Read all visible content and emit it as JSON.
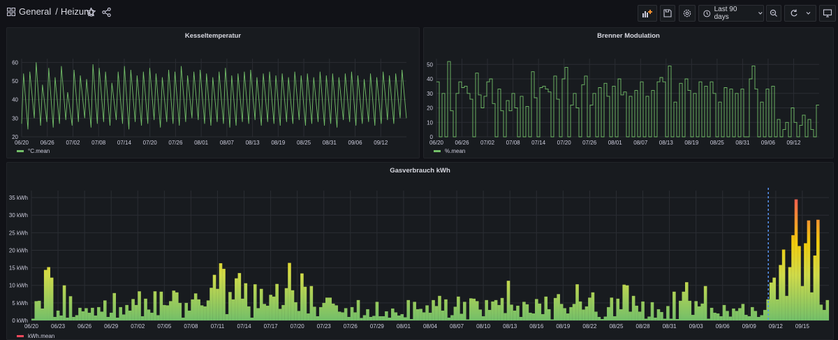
{
  "header": {
    "folder": "General",
    "dashboard": "Heizung",
    "time_range": "Last 90 days"
  },
  "panels": {
    "kessel": {
      "title": "Kesseltemperatur",
      "legend": "°C.mean",
      "color": "#73bf69"
    },
    "brenner": {
      "title": "Brenner Modulation",
      "legend": "%.mean",
      "color": "#73bf69"
    },
    "gas": {
      "title": "Gasverbrauch kWh",
      "legend": "kWh.mean",
      "legend_color": "#f2495c"
    }
  },
  "chart_data": [
    {
      "type": "line",
      "title": "Kesseltemperatur",
      "series": [
        {
          "name": "°C.mean",
          "color": "#73bf69",
          "x_start": "06/20",
          "x_end": "09/16",
          "cycle_min": [
            27,
            24,
            30,
            26,
            28,
            25,
            27,
            29,
            26,
            28,
            30,
            25,
            27,
            28,
            26,
            29,
            27,
            24,
            28,
            26,
            27,
            29,
            25,
            28,
            27,
            26,
            28,
            30,
            29,
            27,
            26,
            28,
            27,
            25,
            26,
            28,
            27,
            29,
            26,
            28,
            27,
            26,
            28,
            27,
            29,
            26,
            27,
            28,
            26,
            27,
            25,
            29,
            28,
            26,
            27,
            28,
            26,
            27,
            29,
            27,
            30
          ],
          "cycle_max": [
            54,
            55,
            60,
            48,
            57,
            52,
            58,
            44,
            56,
            53,
            51,
            59,
            57,
            55,
            49,
            55,
            58,
            56,
            53,
            55,
            57,
            54,
            52,
            56,
            55,
            58,
            53,
            55,
            56,
            54,
            52,
            55,
            57,
            53,
            54,
            55,
            56,
            52,
            54,
            55,
            53,
            54,
            52,
            55,
            53,
            54,
            52,
            55,
            53,
            54,
            52,
            54,
            55,
            53,
            51,
            54,
            52,
            55,
            53,
            54,
            56
          ]
        }
      ],
      "x_ticks": [
        "06/20",
        "06/26",
        "07/02",
        "07/08",
        "07/14",
        "07/20",
        "07/26",
        "08/01",
        "08/07",
        "08/13",
        "08/19",
        "08/25",
        "08/31",
        "09/06",
        "09/12"
      ],
      "y_ticks": [
        20,
        30,
        40,
        50,
        60
      ],
      "ylim": [
        20,
        62
      ]
    },
    {
      "type": "line",
      "title": "Brenner Modulation",
      "series": [
        {
          "name": "%.mean",
          "color": "#73bf69",
          "steps": [
            38,
            0,
            30,
            0,
            52,
            18,
            0,
            30,
            38,
            34,
            35,
            30,
            26,
            0,
            44,
            29,
            20,
            28,
            38,
            40,
            23,
            0,
            33,
            18,
            0,
            25,
            18,
            30,
            20,
            0,
            28,
            0,
            21,
            0,
            45,
            27,
            0,
            34,
            35,
            33,
            31,
            0,
            42,
            26,
            0,
            40,
            48,
            0,
            22,
            30,
            20,
            0,
            36,
            42,
            0,
            22,
            30,
            0,
            34,
            0,
            37,
            28,
            0,
            35,
            0,
            40,
            29,
            31,
            0,
            28,
            0,
            32,
            0,
            38,
            0,
            28,
            0,
            32,
            0,
            38,
            41,
            38,
            0,
            49,
            0,
            24,
            0,
            37,
            0,
            40,
            32,
            0,
            30,
            0,
            38,
            0,
            35,
            0,
            38,
            30,
            0,
            24,
            0,
            34,
            0,
            33,
            0,
            30,
            0,
            33,
            0,
            0,
            40,
            49,
            33,
            0,
            24,
            0,
            33,
            0,
            35,
            0,
            12,
            0,
            5,
            10,
            0,
            20,
            10,
            0,
            8,
            15,
            0,
            12,
            5,
            0,
            22
          ]
        }
      ],
      "x_ticks": [
        "06/20",
        "06/26",
        "07/02",
        "07/08",
        "07/14",
        "07/20",
        "07/26",
        "08/01",
        "08/07",
        "08/13",
        "08/19",
        "08/25",
        "08/31",
        "09/06",
        "09/12"
      ],
      "y_ticks": [
        0,
        10,
        20,
        30,
        40,
        50
      ],
      "ylim": [
        0,
        54
      ]
    },
    {
      "type": "bar",
      "title": "Gasverbrauch kWh",
      "series": [
        {
          "name": "kWh.mean",
          "values": [
            0.5,
            5.5,
            5.6,
            3.4,
            14.4,
            15.2,
            12.2,
            1.0,
            2.8,
            1.4,
            10.0,
            0.8,
            6.9,
            1.0,
            1.5,
            3.6,
            2.6,
            3.5,
            2.2,
            3.6,
            1.4,
            3.8,
            2.5,
            5.7,
            1.0,
            2.2,
            7.8,
            0.8,
            3.8,
            1.7,
            4.4,
            2.8,
            6.1,
            4.4,
            8.3,
            1.2,
            6.2,
            3.1,
            2.2,
            8.3,
            1.5,
            8.2,
            4.4,
            4.3,
            5.5,
            8.5,
            8.0,
            5.0,
            0.8,
            5.0,
            2.8,
            6.0,
            7.7,
            6.0,
            4.3,
            4.0,
            5.7,
            9.3,
            13.0,
            9.0,
            16.3,
            14.7,
            1.8,
            8.1,
            6.0,
            12.0,
            13.5,
            6.2,
            10.6,
            4.0,
            0.8,
            10.3,
            3.5,
            9.0,
            4.7,
            4.2,
            7.3,
            6.8,
            10.4,
            3.3,
            4.4,
            9.2,
            16.4,
            8.6,
            5.2,
            2.7,
            13.4,
            9.6,
            2.0,
            9.8,
            3.9,
            1.2,
            3.8,
            5.0,
            6.5,
            6.5,
            4.8,
            4.3,
            2.5,
            2.3,
            3.5,
            1.0,
            3.8,
            2.3,
            5.8,
            0.7,
            1.5,
            3.2,
            1.0,
            1.3,
            5.3,
            1.2,
            1.2,
            2.6,
            0.8,
            3.4,
            2.3,
            1.4,
            1.8,
            0.9,
            5.8,
            0.4,
            5.3,
            3.2,
            3.3,
            2.3,
            4.3,
            2.2,
            5.8,
            4.1,
            7.0,
            2.8,
            6.0,
            0.8,
            1.5,
            3.9,
            6.8,
            1.9,
            5.3,
            0.3,
            6.3,
            6.2,
            5.5,
            3.1,
            1.2,
            5.8,
            3.0,
            5.4,
            5.8,
            4.4,
            6.4,
            2.1,
            11.3,
            4.5,
            2.8,
            4.2,
            1.0,
            5.3,
            4.6,
            2.2,
            2.0,
            6.1,
            4.8,
            1.8,
            6.8,
            3.2,
            0.3,
            6.4,
            7.5,
            4.7,
            3.5,
            2.0,
            3.8,
            4.7,
            10.3,
            5.4,
            3.1,
            4.0,
            6.5,
            8.0,
            2.5,
            1.0,
            0.4,
            1.1,
            3.8,
            6.5,
            1.2,
            6.2,
            3.2,
            10.2,
            10.0,
            2.5,
            7.0,
            4.2,
            2.5,
            5.4,
            0.5,
            1.1,
            5.2,
            0.8,
            3.2,
            2.4,
            0.5,
            4.1,
            0.5,
            8.2,
            0.4,
            5.6,
            8.2,
            10.9,
            5.6,
            1.6,
            5.5,
            4.0,
            4.8,
            9.8,
            0.5,
            3.6,
            2.2,
            2.0,
            1.2,
            4.4,
            2.7,
            1.1,
            3.4,
            2.7,
            3.5,
            4.7,
            1.6,
            1.2,
            3.8,
            2.7,
            1.0,
            1.5,
            3.0,
            6.0,
            10.8,
            12.2,
            6.0,
            15.8,
            20.2,
            7.0,
            15.2,
            24.3,
            34.5,
            21.2,
            9.8,
            22.0,
            28.5,
            8.0,
            18.5,
            28.7,
            4.5,
            3.0,
            5.8
          ]
        }
      ],
      "x_ticks": [
        "06/20",
        "06/23",
        "06/26",
        "06/29",
        "07/02",
        "07/05",
        "07/08",
        "07/11",
        "07/14",
        "07/17",
        "07/20",
        "07/23",
        "07/26",
        "07/29",
        "08/01",
        "08/04",
        "08/07",
        "08/10",
        "08/13",
        "08/16",
        "08/19",
        "08/22",
        "08/25",
        "08/28",
        "08/31",
        "09/03",
        "09/06",
        "09/09",
        "09/12",
        "09/15"
      ],
      "y_ticks": [
        "0 kWh",
        "5 kWh",
        "10 kWh",
        "15 kWh",
        "20 kWh",
        "25 kWh",
        "30 kWh",
        "35 kWh"
      ],
      "ylim": [
        0,
        37
      ],
      "annotation_color": "#5794f2"
    }
  ]
}
